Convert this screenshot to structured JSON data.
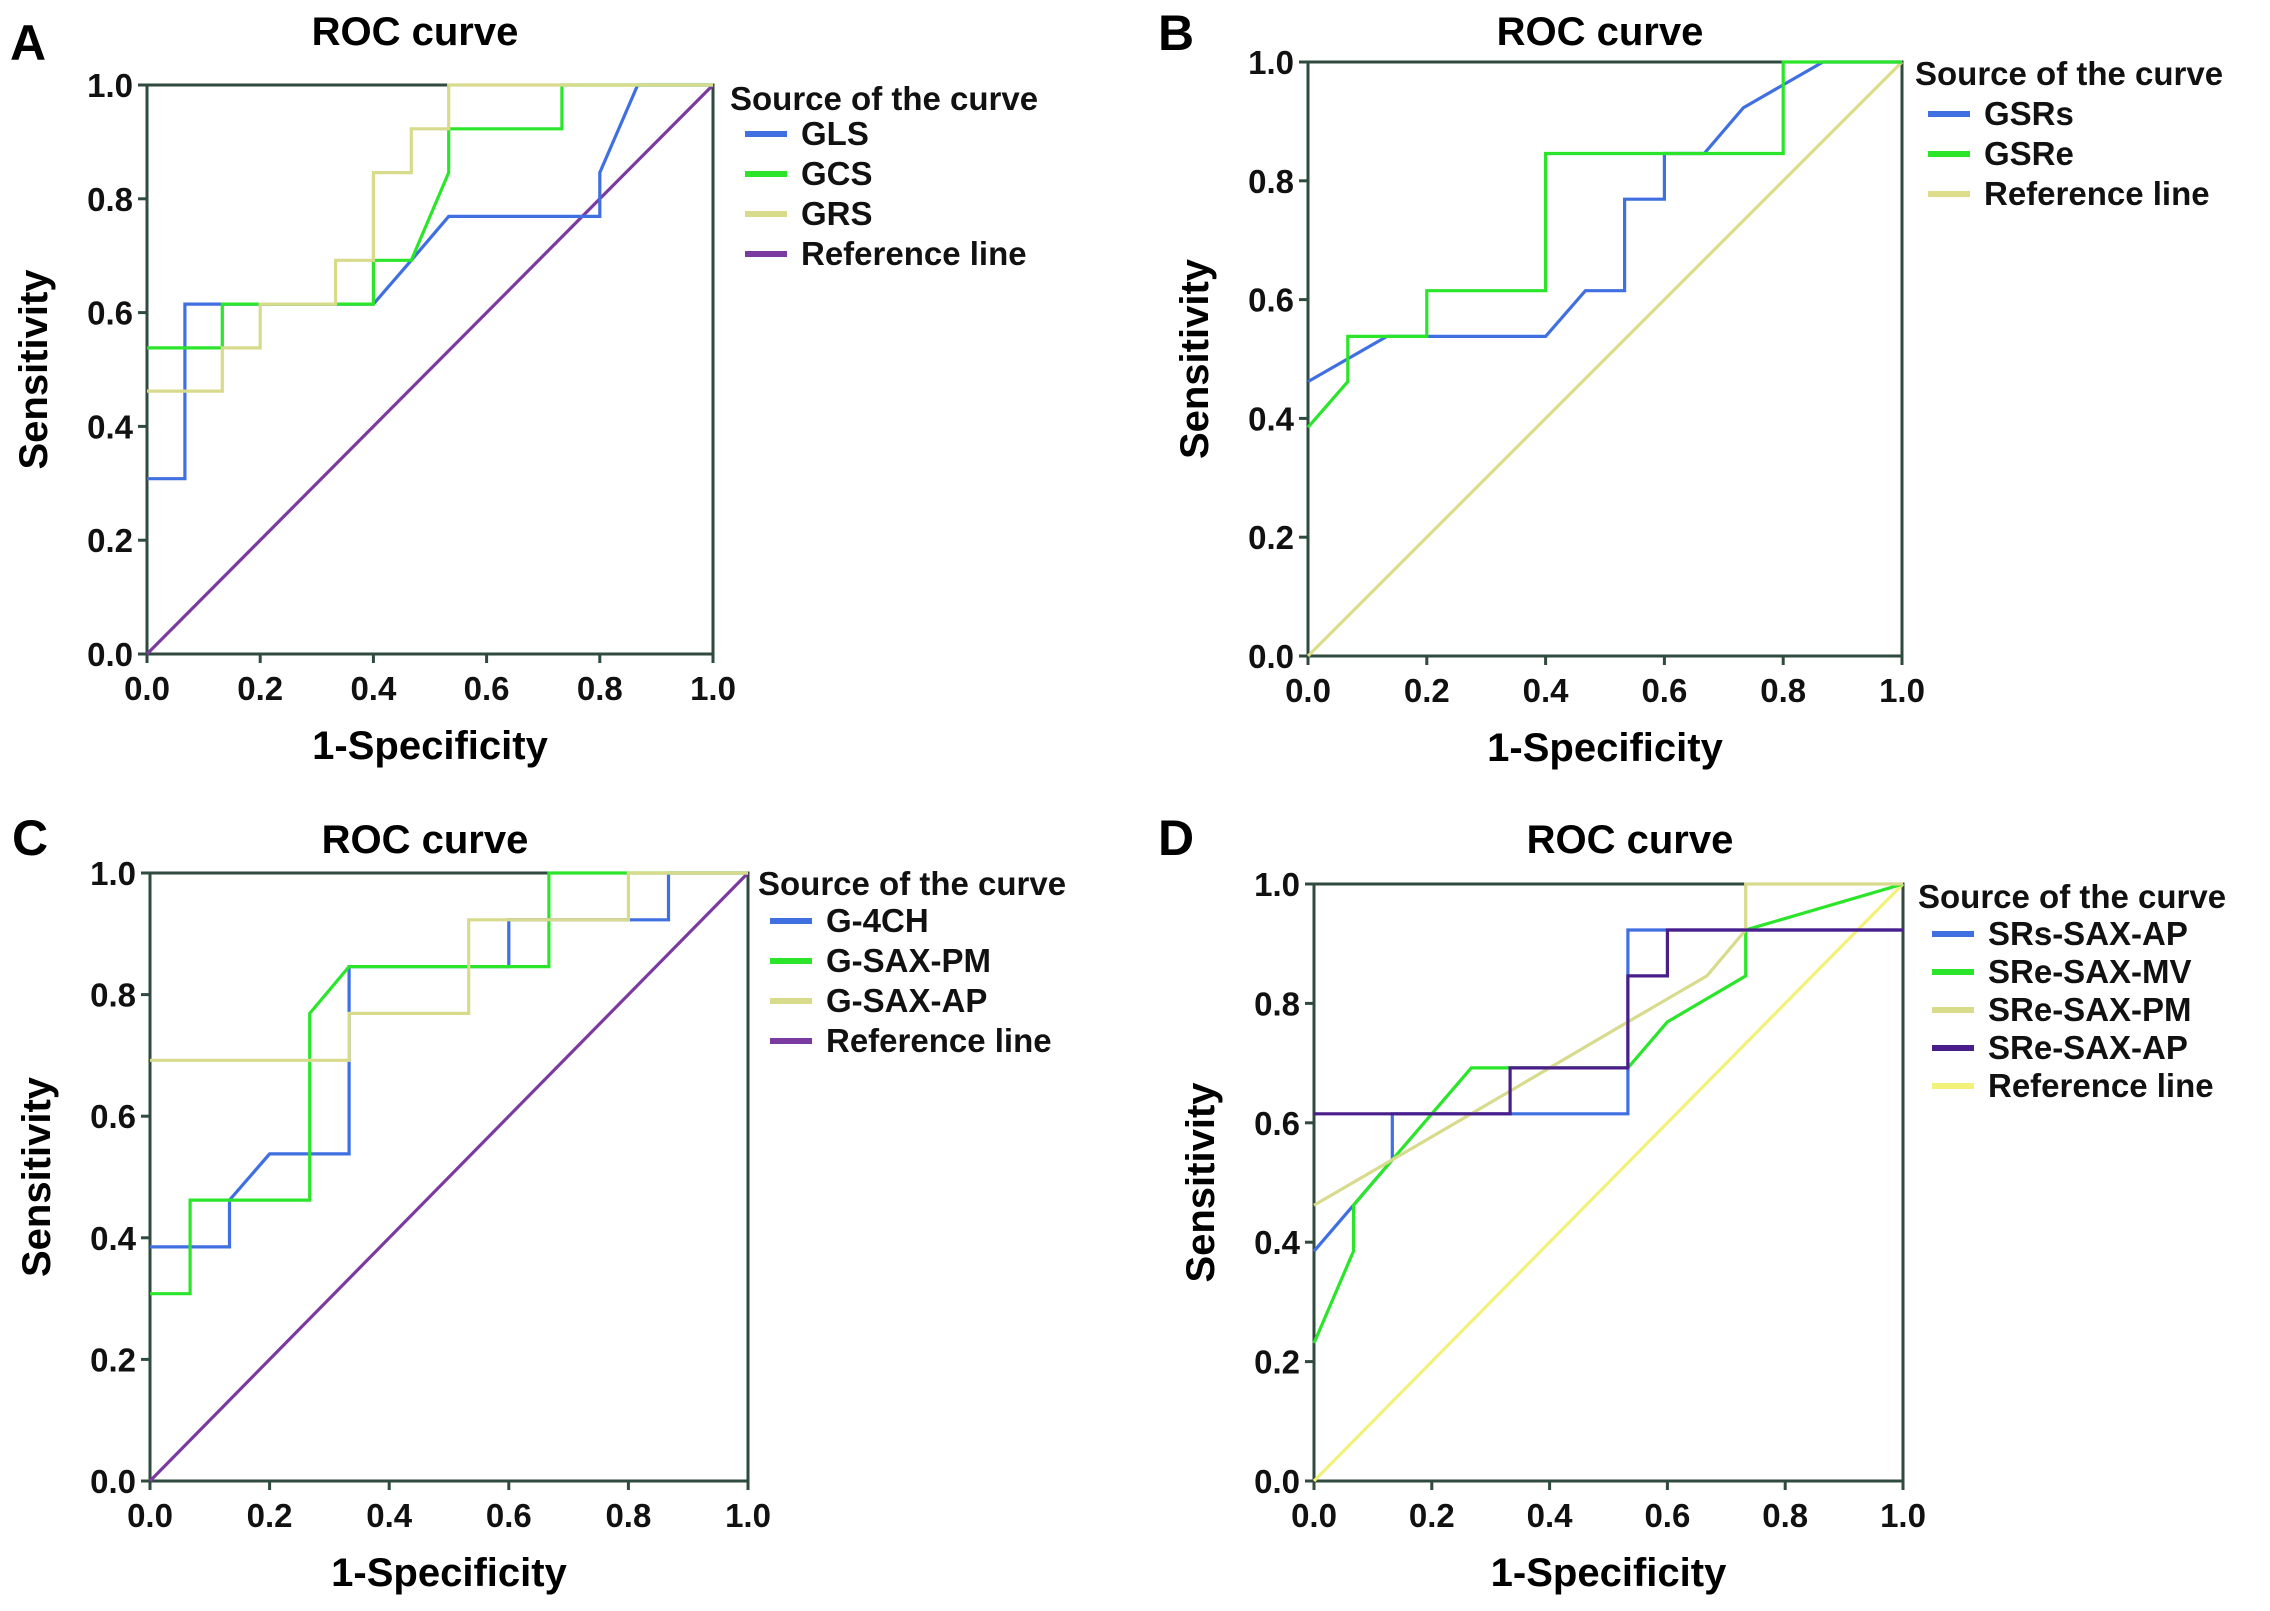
{
  "chart_data": [
    {
      "type": "line",
      "panel": "A",
      "title": "ROC curve",
      "xlabel": "1-Specificity",
      "ylabel": "Sensitivity",
      "xlim": [
        0,
        1
      ],
      "ylim": [
        0,
        1
      ],
      "xticks": [
        "0.0",
        "0.2",
        "0.4",
        "0.6",
        "0.8",
        "1.0"
      ],
      "yticks": [
        "0.0",
        "0.2",
        "0.4",
        "0.6",
        "0.8",
        "1.0"
      ],
      "legend_title": "Source of the curve",
      "series": [
        {
          "name": "GLS",
          "color": "#3f6fe0",
          "kind": "step",
          "points": [
            [
              0,
              0.308
            ],
            [
              0.067,
              0.308
            ],
            [
              0.067,
              0.615
            ],
            [
              0.4,
              0.615
            ],
            [
              0.467,
              0.692
            ],
            [
              0.533,
              0.769
            ],
            [
              0.8,
              0.769
            ],
            [
              0.8,
              0.846
            ],
            [
              0.867,
              1.0
            ],
            [
              1.0,
              1.0
            ]
          ]
        },
        {
          "name": "GCS",
          "color": "#2be52b",
          "kind": "step",
          "points": [
            [
              0,
              0.538
            ],
            [
              0.133,
              0.538
            ],
            [
              0.133,
              0.615
            ],
            [
              0.4,
              0.615
            ],
            [
              0.4,
              0.692
            ],
            [
              0.467,
              0.692
            ],
            [
              0.533,
              0.846
            ],
            [
              0.533,
              0.923
            ],
            [
              0.733,
              0.923
            ],
            [
              0.733,
              1.0
            ],
            [
              1.0,
              1.0
            ]
          ]
        },
        {
          "name": "GRS",
          "color": "#d8da8c",
          "kind": "step",
          "points": [
            [
              0,
              0.462
            ],
            [
              0.133,
              0.462
            ],
            [
              0.133,
              0.538
            ],
            [
              0.2,
              0.538
            ],
            [
              0.2,
              0.615
            ],
            [
              0.333,
              0.615
            ],
            [
              0.333,
              0.692
            ],
            [
              0.4,
              0.692
            ],
            [
              0.4,
              0.846
            ],
            [
              0.467,
              0.846
            ],
            [
              0.467,
              0.923
            ],
            [
              0.533,
              0.923
            ],
            [
              0.533,
              1.0
            ],
            [
              1.0,
              1.0
            ]
          ]
        },
        {
          "name": "Reference line",
          "color": "#7b3aa0",
          "kind": "diagonal",
          "points": [
            [
              0,
              0
            ],
            [
              1,
              1
            ]
          ]
        }
      ]
    },
    {
      "type": "line",
      "panel": "B",
      "title": "ROC curve",
      "xlabel": "1-Specificity",
      "ylabel": "Sensitivity",
      "xlim": [
        0,
        1
      ],
      "ylim": [
        0,
        1
      ],
      "xticks": [
        "0.0",
        "0.2",
        "0.4",
        "0.6",
        "0.8",
        "1.0"
      ],
      "yticks": [
        "0.0",
        "0.2",
        "0.4",
        "0.6",
        "0.8",
        "1.0"
      ],
      "legend_title": "Source of the curve",
      "series": [
        {
          "name": "GSRs",
          "color": "#3f6fe0",
          "kind": "step",
          "points": [
            [
              0,
              0.462
            ],
            [
              0.133,
              0.538
            ],
            [
              0.4,
              0.538
            ],
            [
              0.467,
              0.615
            ],
            [
              0.533,
              0.615
            ],
            [
              0.533,
              0.769
            ],
            [
              0.6,
              0.769
            ],
            [
              0.6,
              0.846
            ],
            [
              0.667,
              0.846
            ],
            [
              0.733,
              0.923
            ],
            [
              0.867,
              1.0
            ],
            [
              1.0,
              1.0
            ]
          ]
        },
        {
          "name": "GSRe",
          "color": "#2be52b",
          "kind": "step",
          "points": [
            [
              0,
              0.385
            ],
            [
              0.067,
              0.462
            ],
            [
              0.067,
              0.538
            ],
            [
              0.2,
              0.538
            ],
            [
              0.2,
              0.615
            ],
            [
              0.4,
              0.615
            ],
            [
              0.4,
              0.846
            ],
            [
              0.8,
              0.846
            ],
            [
              0.8,
              1.0
            ],
            [
              1.0,
              1.0
            ]
          ]
        },
        {
          "name": "Reference line",
          "color": "#dcdc8a",
          "kind": "diagonal",
          "points": [
            [
              0,
              0
            ],
            [
              1,
              1
            ]
          ]
        }
      ]
    },
    {
      "type": "line",
      "panel": "C",
      "title": "ROC curve",
      "xlabel": "1-Specificity",
      "ylabel": "Sensitivity",
      "xlim": [
        0,
        1
      ],
      "ylim": [
        0,
        1
      ],
      "xticks": [
        "0.0",
        "0.2",
        "0.4",
        "0.6",
        "0.8",
        "1.0"
      ],
      "yticks": [
        "0.0",
        "0.2",
        "0.4",
        "0.6",
        "0.8",
        "1.0"
      ],
      "legend_title": "Source of the curve",
      "series": [
        {
          "name": "G-4CH",
          "color": "#3f6fe0",
          "kind": "step",
          "points": [
            [
              0,
              0.385
            ],
            [
              0.133,
              0.385
            ],
            [
              0.133,
              0.462
            ],
            [
              0.2,
              0.538
            ],
            [
              0.333,
              0.538
            ],
            [
              0.333,
              0.846
            ],
            [
              0.6,
              0.846
            ],
            [
              0.6,
              0.923
            ],
            [
              0.867,
              0.923
            ],
            [
              0.867,
              1.0
            ],
            [
              1.0,
              1.0
            ]
          ]
        },
        {
          "name": "G-SAX-PM",
          "color": "#2be52b",
          "kind": "step",
          "points": [
            [
              0,
              0.308
            ],
            [
              0.067,
              0.308
            ],
            [
              0.067,
              0.462
            ],
            [
              0.267,
              0.462
            ],
            [
              0.267,
              0.769
            ],
            [
              0.333,
              0.846
            ],
            [
              0.6,
              0.846
            ],
            [
              0.667,
              0.846
            ],
            [
              0.667,
              1.0
            ],
            [
              1.0,
              1.0
            ]
          ]
        },
        {
          "name": "G-SAX-AP",
          "color": "#d8da8c",
          "kind": "step",
          "points": [
            [
              0,
              0.692
            ],
            [
              0.333,
              0.692
            ],
            [
              0.333,
              0.769
            ],
            [
              0.533,
              0.769
            ],
            [
              0.533,
              0.923
            ],
            [
              0.8,
              0.923
            ],
            [
              0.8,
              1.0
            ],
            [
              1.0,
              1.0
            ]
          ]
        },
        {
          "name": "Reference line",
          "color": "#7b3aa0",
          "kind": "diagonal",
          "points": [
            [
              0,
              0
            ],
            [
              1,
              1
            ]
          ]
        }
      ]
    },
    {
      "type": "line",
      "panel": "D",
      "title": "ROC curve",
      "xlabel": "1-Specificity",
      "ylabel": "Sensitivity",
      "xlim": [
        0,
        1
      ],
      "ylim": [
        0,
        1
      ],
      "xticks": [
        "0.0",
        "0.2",
        "0.4",
        "0.6",
        "0.8",
        "1.0"
      ],
      "yticks": [
        "0.0",
        "0.2",
        "0.4",
        "0.6",
        "0.8",
        "1.0"
      ],
      "legend_title": "Source of the curve",
      "series": [
        {
          "name": "SRs-SAX-AP",
          "color": "#3f6fe0",
          "kind": "step",
          "points": [
            [
              0,
              0.385
            ],
            [
              0.067,
              0.462
            ],
            [
              0.133,
              0.538
            ],
            [
              0.133,
              0.615
            ],
            [
              0.533,
              0.615
            ],
            [
              0.533,
              0.923
            ],
            [
              1.0,
              0.923
            ]
          ]
        },
        {
          "name": "SRe-SAX-MV",
          "color": "#2be52b",
          "kind": "step",
          "points": [
            [
              0,
              0.231
            ],
            [
              0.067,
              0.385
            ],
            [
              0.067,
              0.462
            ],
            [
              0.133,
              0.538
            ],
            [
              0.2,
              0.615
            ],
            [
              0.267,
              0.692
            ],
            [
              0.533,
              0.692
            ],
            [
              0.6,
              0.769
            ],
            [
              0.733,
              0.846
            ],
            [
              0.733,
              0.923
            ],
            [
              1.0,
              1.0
            ]
          ]
        },
        {
          "name": "SRe-SAX-PM",
          "color": "#d8da8c",
          "kind": "step",
          "points": [
            [
              0,
              0.462
            ],
            [
              0.133,
              0.538
            ],
            [
              0.267,
              0.615
            ],
            [
              0.4,
              0.692
            ],
            [
              0.533,
              0.769
            ],
            [
              0.667,
              0.846
            ],
            [
              0.733,
              0.923
            ],
            [
              0.733,
              1.0
            ],
            [
              1.0,
              1.0
            ]
          ]
        },
        {
          "name": "SRe-SAX-AP",
          "color": "#4a1e8a",
          "kind": "step",
          "points": [
            [
              0,
              0.615
            ],
            [
              0.333,
              0.615
            ],
            [
              0.333,
              0.692
            ],
            [
              0.533,
              0.692
            ],
            [
              0.533,
              0.846
            ],
            [
              0.6,
              0.846
            ],
            [
              0.6,
              0.923
            ],
            [
              1.0,
              0.923
            ]
          ]
        },
        {
          "name": "Reference line",
          "color": "#f2f27a",
          "kind": "diagonal",
          "points": [
            [
              0,
              0
            ],
            [
              1,
              1
            ]
          ]
        }
      ]
    }
  ]
}
